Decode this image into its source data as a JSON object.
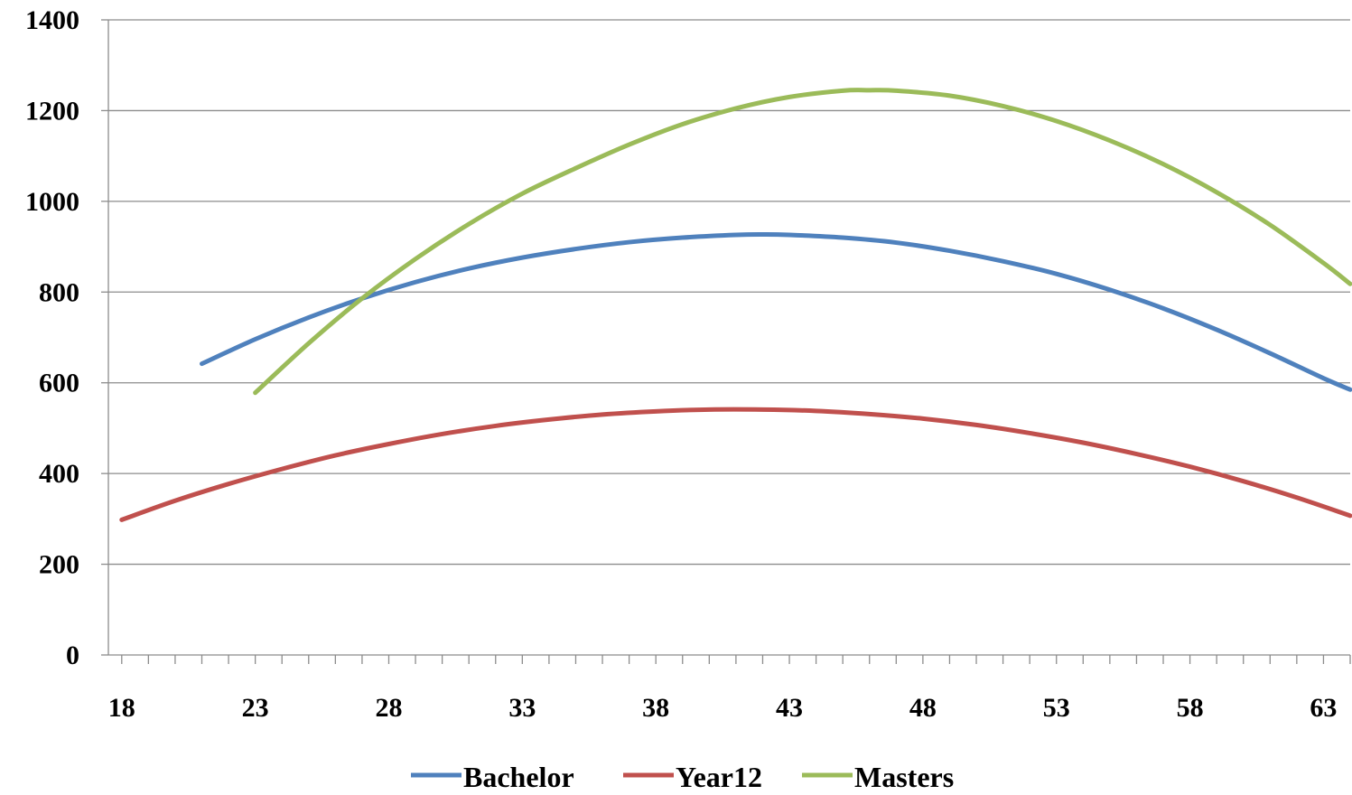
{
  "chart_data": {
    "type": "line",
    "title": "",
    "xlabel": "",
    "ylabel": "",
    "xlim": [
      17.5,
      64
    ],
    "ylim": [
      0,
      1400
    ],
    "x_ticks": [
      "18",
      "23",
      "28",
      "33",
      "38",
      "43",
      "48",
      "53",
      "58",
      "63"
    ],
    "y_ticks": [
      "0",
      "200",
      "400",
      "600",
      "800",
      "1000",
      "1200",
      "1400"
    ],
    "grid": "horizontal",
    "legend_position": "bottom",
    "series": [
      {
        "name": "Bachelor",
        "color": "#4f81bd",
        "x": [
          21,
          23,
          25,
          27,
          29,
          31,
          33,
          35,
          37,
          39,
          41,
          42,
          43,
          45,
          47,
          49,
          51,
          53,
          55,
          57,
          59,
          61,
          63,
          64
        ],
        "y": [
          642,
          696,
          744,
          786,
          822,
          852,
          876,
          895,
          910,
          920,
          926,
          927,
          926,
          920,
          909,
          891,
          868,
          840,
          805,
          764,
          717,
          665,
          610,
          585
        ]
      },
      {
        "name": "Year12",
        "color": "#c0504d",
        "x": [
          18,
          20,
          22,
          24,
          26,
          28,
          30,
          32,
          34,
          36,
          38,
          40,
          42,
          44,
          46,
          48,
          50,
          52,
          54,
          56,
          58,
          60,
          62,
          64
        ],
        "y": [
          298,
          340,
          377,
          410,
          440,
          465,
          487,
          505,
          519,
          530,
          537,
          541,
          541,
          538,
          531,
          521,
          507,
          489,
          468,
          443,
          415,
          383,
          347,
          307
        ]
      },
      {
        "name": "Masters",
        "color": "#9bbb59",
        "x": [
          23,
          25,
          27,
          29,
          31,
          33,
          35,
          37,
          39,
          41,
          43,
          45,
          46,
          47,
          49,
          51,
          53,
          55,
          57,
          59,
          61,
          63,
          64
        ],
        "y": [
          578,
          687,
          786,
          873,
          950,
          1017,
          1073,
          1125,
          1170,
          1205,
          1230,
          1244,
          1245,
          1244,
          1233,
          1210,
          1177,
          1134,
          1082,
          1020,
          948,
          864,
          818
        ]
      }
    ]
  }
}
